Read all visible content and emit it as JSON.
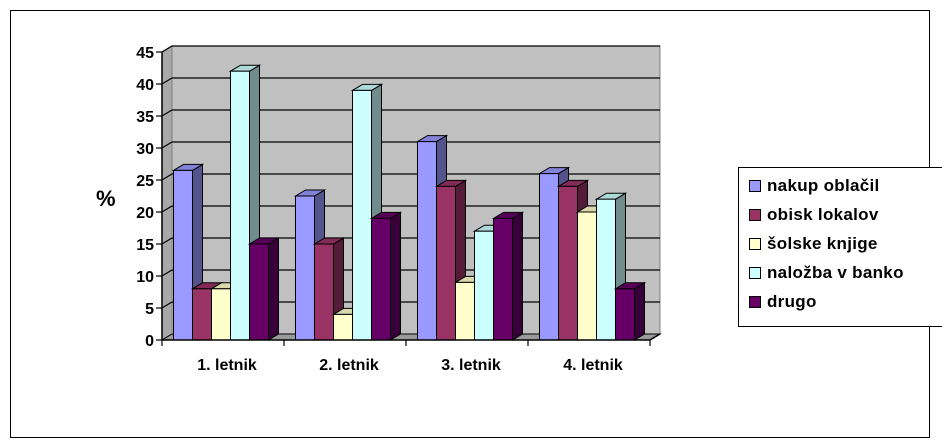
{
  "chart_data": {
    "type": "bar",
    "title": "",
    "xlabel": "",
    "ylabel": "%",
    "ylim": [
      0,
      45
    ],
    "yticks": [
      "0",
      "5",
      "10",
      "15",
      "20",
      "25",
      "30",
      "35",
      "40",
      "45"
    ],
    "grid": true,
    "legend_position": "right",
    "categories": [
      "1. letnik",
      "2. letnik",
      "3. letnik",
      "4. letnik"
    ],
    "series": [
      {
        "name": "nakup oblačil",
        "color": "#9999ff",
        "values": [
          26.5,
          22.5,
          31,
          26
        ]
      },
      {
        "name": "obisk lokalov",
        "color": "#993366",
        "values": [
          8,
          15,
          24,
          24
        ]
      },
      {
        "name": "šolske knjige",
        "color": "#ffffcc",
        "values": [
          8,
          4,
          9,
          20
        ]
      },
      {
        "name": "naložba v banko",
        "color": "#ccffff",
        "values": [
          42,
          39,
          17,
          22
        ]
      },
      {
        "name": "drugo",
        "color": "#660066",
        "values": [
          15,
          19,
          19,
          8
        ]
      }
    ],
    "plot_background": "#c0c0c0"
  }
}
